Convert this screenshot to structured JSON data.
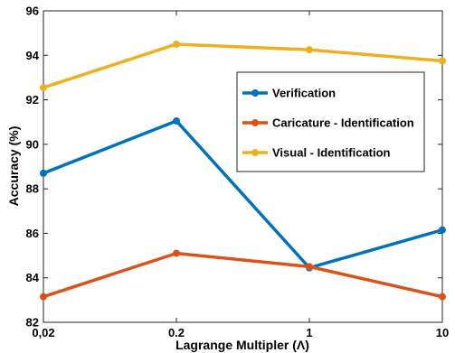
{
  "chart_data": {
    "type": "line",
    "x_tick_labels": [
      "0,02",
      "0.2",
      "1",
      "10"
    ],
    "x": [
      0.02,
      0.2,
      1,
      10
    ],
    "x_scale": "categorical-equal-spacing",
    "xlabel": "Lagrange Multipler (Λ)",
    "ylabel": "Accuracy (%)",
    "ylim": [
      82,
      96
    ],
    "y_ticks": [
      82,
      84,
      86,
      88,
      90,
      92,
      94,
      96
    ],
    "grid": false,
    "legend_position": "center-right",
    "series": [
      {
        "name": "Verification",
        "color": "#0072BD",
        "values": [
          88.7,
          91.05,
          84.45,
          86.15
        ]
      },
      {
        "name": "Caricature - Identification",
        "color": "#D95319",
        "values": [
          83.15,
          85.1,
          84.5,
          83.15
        ]
      },
      {
        "name": "Visual - Identification",
        "color": "#EDB120",
        "values": [
          92.55,
          94.5,
          94.25,
          93.75
        ]
      }
    ]
  }
}
